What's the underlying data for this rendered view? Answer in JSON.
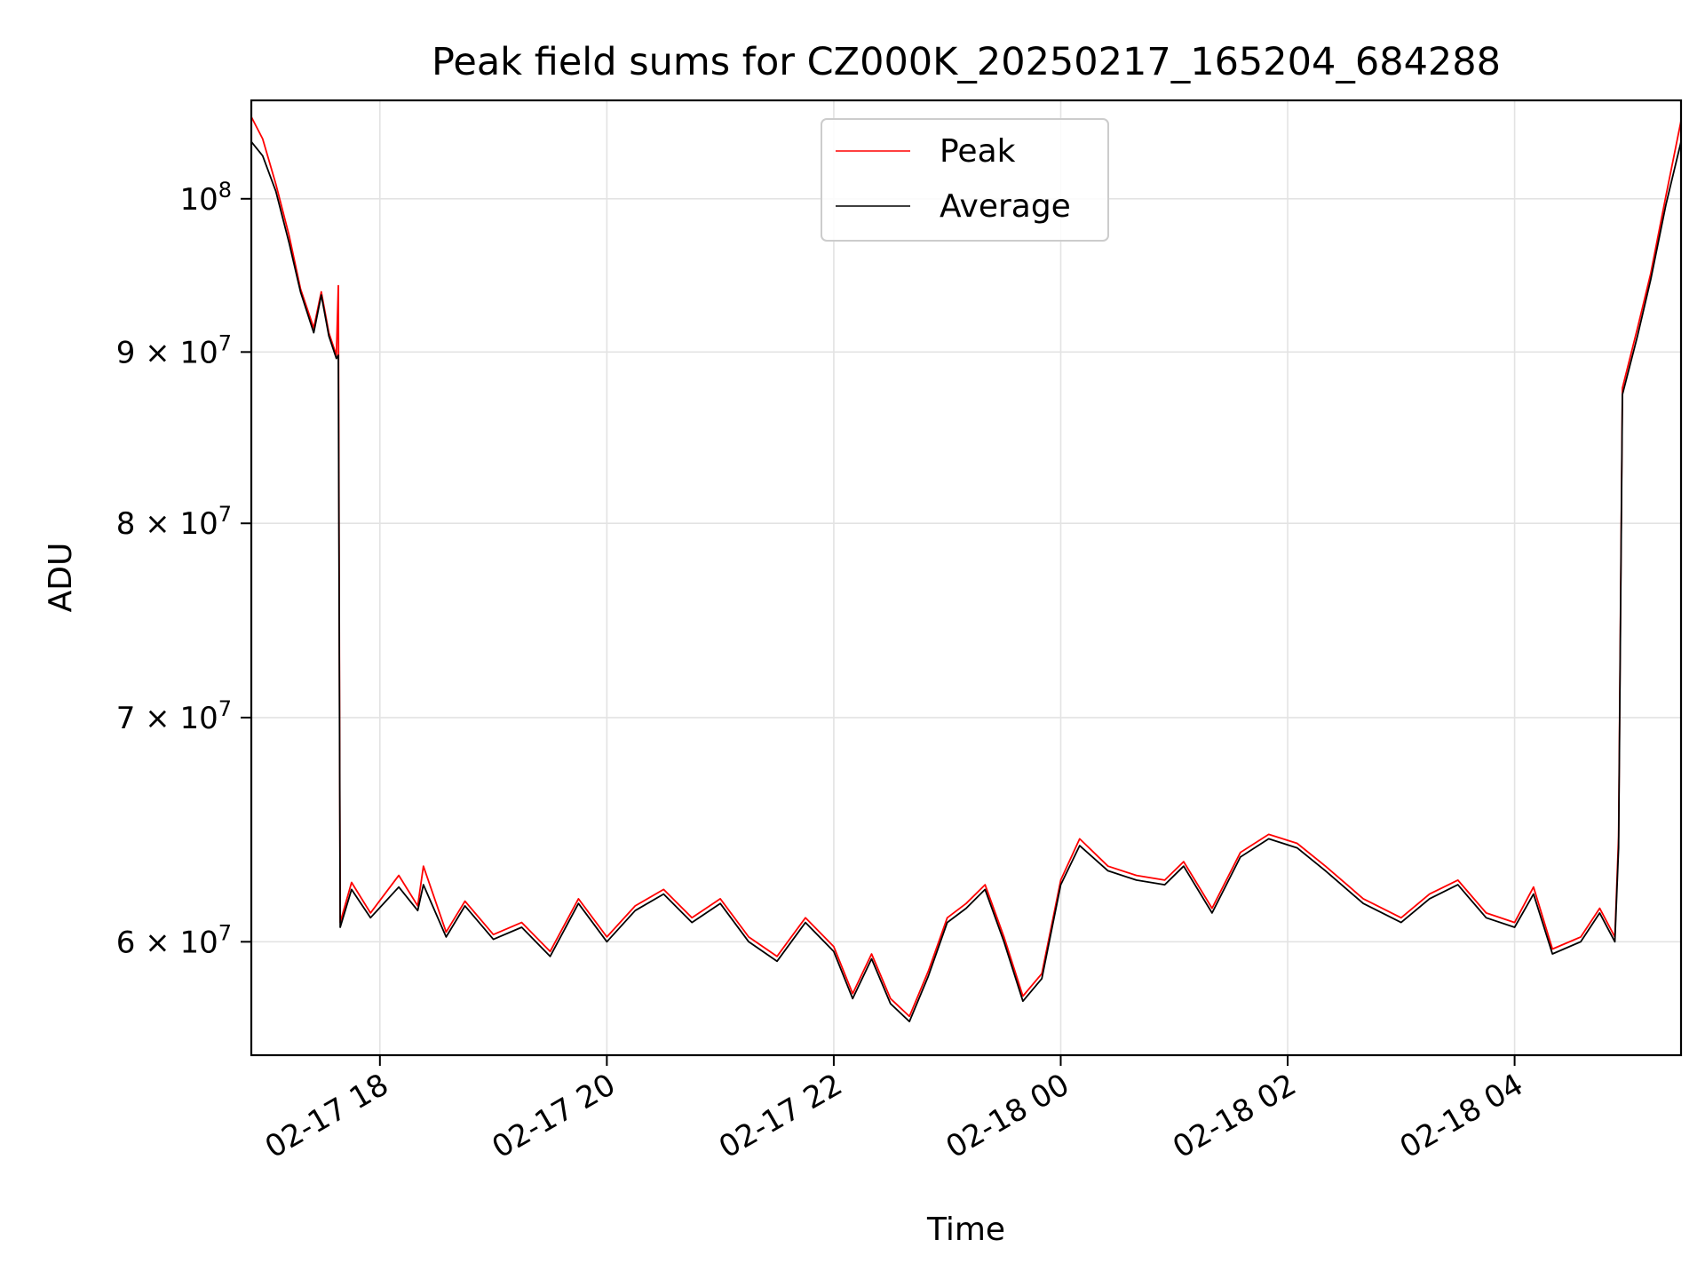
{
  "chart_data": {
    "type": "line",
    "title": "Peak field sums for CZ000K_20250217_165204_684288",
    "xlabel": "Time",
    "ylabel": "ADU",
    "x_range": [
      "2025-02-17T16:52",
      "2025-02-18T05:28"
    ],
    "y_scale": "log",
    "ylim": [
      55500000,
      107000000
    ],
    "grid": true,
    "legend_position": "top-center",
    "x_ticks": [
      {
        "value": "2025-02-17T18:00",
        "label": "02-17 18"
      },
      {
        "value": "2025-02-17T20:00",
        "label": "02-17 20"
      },
      {
        "value": "2025-02-17T22:00",
        "label": "02-17 22"
      },
      {
        "value": "2025-02-18T00:00",
        "label": "02-18 00"
      },
      {
        "value": "2025-02-18T02:00",
        "label": "02-18 02"
      },
      {
        "value": "2025-02-18T04:00",
        "label": "02-18 04"
      }
    ],
    "y_ticks": [
      {
        "value": 60000000,
        "mantissa": "6",
        "label": "6 × 10⁷"
      },
      {
        "value": 70000000,
        "mantissa": "7",
        "label": "7 × 10⁷"
      },
      {
        "value": 80000000,
        "mantissa": "8",
        "label": "8 × 10⁷"
      },
      {
        "value": 90000000,
        "mantissa": "9",
        "label": "9 × 10⁷"
      },
      {
        "value": 100000000,
        "mantissa": "",
        "label": "10⁸"
      }
    ],
    "y_tick_base": "10",
    "y_tick_exp_minor": "7",
    "y_tick_exp_major": "8",
    "series": [
      {
        "name": "Peak",
        "color": "#ff0000",
        "points": [
          [
            "2025-02-17T16:52",
            105800000
          ],
          [
            "2025-02-17T16:58",
            104200000
          ],
          [
            "2025-02-17T17:05",
            101000000
          ],
          [
            "2025-02-17T17:12",
            97500000
          ],
          [
            "2025-02-17T17:18",
            94000000
          ],
          [
            "2025-02-17T17:25",
            91500000
          ],
          [
            "2025-02-17T17:29",
            93800000
          ],
          [
            "2025-02-17T17:33",
            91200000
          ],
          [
            "2025-02-17T17:37",
            89800000
          ],
          [
            "2025-02-17T17:38",
            94200000
          ],
          [
            "2025-02-17T17:39",
            60800000
          ],
          [
            "2025-02-17T17:45",
            62500000
          ],
          [
            "2025-02-17T17:55",
            61200000
          ],
          [
            "2025-02-17T18:10",
            62800000
          ],
          [
            "2025-02-17T18:20",
            61500000
          ],
          [
            "2025-02-17T18:23",
            63200000
          ],
          [
            "2025-02-17T18:35",
            60400000
          ],
          [
            "2025-02-17T18:45",
            61700000
          ],
          [
            "2025-02-17T19:00",
            60300000
          ],
          [
            "2025-02-17T19:15",
            60800000
          ],
          [
            "2025-02-17T19:30",
            59600000
          ],
          [
            "2025-02-17T19:45",
            61800000
          ],
          [
            "2025-02-17T20:00",
            60200000
          ],
          [
            "2025-02-17T20:15",
            61500000
          ],
          [
            "2025-02-17T20:30",
            62200000
          ],
          [
            "2025-02-17T20:45",
            61000000
          ],
          [
            "2025-02-17T21:00",
            61800000
          ],
          [
            "2025-02-17T21:15",
            60200000
          ],
          [
            "2025-02-17T21:30",
            59400000
          ],
          [
            "2025-02-17T21:45",
            61000000
          ],
          [
            "2025-02-17T22:00",
            59800000
          ],
          [
            "2025-02-17T22:10",
            57900000
          ],
          [
            "2025-02-17T22:20",
            59500000
          ],
          [
            "2025-02-17T22:30",
            57700000
          ],
          [
            "2025-02-17T22:40",
            57000000
          ],
          [
            "2025-02-17T22:50",
            58800000
          ],
          [
            "2025-02-17T23:00",
            61000000
          ],
          [
            "2025-02-17T23:10",
            61600000
          ],
          [
            "2025-02-17T23:20",
            62400000
          ],
          [
            "2025-02-17T23:30",
            60200000
          ],
          [
            "2025-02-17T23:40",
            57800000
          ],
          [
            "2025-02-17T23:50",
            58700000
          ],
          [
            "2025-02-18T00:00",
            62600000
          ],
          [
            "2025-02-18T00:10",
            64400000
          ],
          [
            "2025-02-18T00:25",
            63200000
          ],
          [
            "2025-02-18T00:40",
            62800000
          ],
          [
            "2025-02-18T00:55",
            62600000
          ],
          [
            "2025-02-18T01:05",
            63400000
          ],
          [
            "2025-02-18T01:20",
            61400000
          ],
          [
            "2025-02-18T01:35",
            63800000
          ],
          [
            "2025-02-18T01:50",
            64600000
          ],
          [
            "2025-02-18T02:05",
            64200000
          ],
          [
            "2025-02-18T02:20",
            63200000
          ],
          [
            "2025-02-18T02:40",
            61800000
          ],
          [
            "2025-02-18T03:00",
            61000000
          ],
          [
            "2025-02-18T03:15",
            62000000
          ],
          [
            "2025-02-18T03:30",
            62600000
          ],
          [
            "2025-02-18T03:45",
            61200000
          ],
          [
            "2025-02-18T04:00",
            60800000
          ],
          [
            "2025-02-18T04:10",
            62300000
          ],
          [
            "2025-02-18T04:20",
            59700000
          ],
          [
            "2025-02-18T04:35",
            60200000
          ],
          [
            "2025-02-18T04:45",
            61400000
          ],
          [
            "2025-02-18T04:53",
            60200000
          ],
          [
            "2025-02-18T04:55",
            64500000
          ],
          [
            "2025-02-18T04:57",
            87800000
          ],
          [
            "2025-02-18T05:05",
            91500000
          ],
          [
            "2025-02-18T05:12",
            95000000
          ],
          [
            "2025-02-18T05:20",
            100200000
          ],
          [
            "2025-02-18T05:28",
            105500000
          ]
        ]
      },
      {
        "name": "Average",
        "color": "#000000",
        "points": [
          [
            "2025-02-17T16:52",
            104000000
          ],
          [
            "2025-02-17T16:58",
            103000000
          ],
          [
            "2025-02-17T17:05",
            100500000
          ],
          [
            "2025-02-17T17:12",
            97000000
          ],
          [
            "2025-02-17T17:18",
            93800000
          ],
          [
            "2025-02-17T17:25",
            91200000
          ],
          [
            "2025-02-17T17:29",
            93600000
          ],
          [
            "2025-02-17T17:33",
            91000000
          ],
          [
            "2025-02-17T17:37",
            89600000
          ],
          [
            "2025-02-17T17:38",
            89800000
          ],
          [
            "2025-02-17T17:39",
            60600000
          ],
          [
            "2025-02-17T17:45",
            62200000
          ],
          [
            "2025-02-17T17:55",
            61000000
          ],
          [
            "2025-02-17T18:10",
            62300000
          ],
          [
            "2025-02-17T18:20",
            61300000
          ],
          [
            "2025-02-17T18:23",
            62400000
          ],
          [
            "2025-02-17T18:35",
            60200000
          ],
          [
            "2025-02-17T18:45",
            61500000
          ],
          [
            "2025-02-17T19:00",
            60100000
          ],
          [
            "2025-02-17T19:15",
            60600000
          ],
          [
            "2025-02-17T19:30",
            59400000
          ],
          [
            "2025-02-17T19:45",
            61600000
          ],
          [
            "2025-02-17T20:00",
            60000000
          ],
          [
            "2025-02-17T20:15",
            61300000
          ],
          [
            "2025-02-17T20:30",
            62000000
          ],
          [
            "2025-02-17T20:45",
            60800000
          ],
          [
            "2025-02-17T21:00",
            61600000
          ],
          [
            "2025-02-17T21:15",
            60000000
          ],
          [
            "2025-02-17T21:30",
            59200000
          ],
          [
            "2025-02-17T21:45",
            60800000
          ],
          [
            "2025-02-17T22:00",
            59600000
          ],
          [
            "2025-02-17T22:10",
            57700000
          ],
          [
            "2025-02-17T22:20",
            59300000
          ],
          [
            "2025-02-17T22:30",
            57500000
          ],
          [
            "2025-02-17T22:40",
            56800000
          ],
          [
            "2025-02-17T22:50",
            58600000
          ],
          [
            "2025-02-17T23:00",
            60800000
          ],
          [
            "2025-02-17T23:10",
            61400000
          ],
          [
            "2025-02-17T23:20",
            62200000
          ],
          [
            "2025-02-17T23:30",
            60000000
          ],
          [
            "2025-02-17T23:40",
            57600000
          ],
          [
            "2025-02-17T23:50",
            58500000
          ],
          [
            "2025-02-18T00:00",
            62400000
          ],
          [
            "2025-02-18T00:10",
            64100000
          ],
          [
            "2025-02-18T00:25",
            63000000
          ],
          [
            "2025-02-18T00:40",
            62600000
          ],
          [
            "2025-02-18T00:55",
            62400000
          ],
          [
            "2025-02-18T01:05",
            63200000
          ],
          [
            "2025-02-18T01:20",
            61200000
          ],
          [
            "2025-02-18T01:35",
            63600000
          ],
          [
            "2025-02-18T01:50",
            64400000
          ],
          [
            "2025-02-18T02:05",
            64000000
          ],
          [
            "2025-02-18T02:20",
            63000000
          ],
          [
            "2025-02-18T02:40",
            61600000
          ],
          [
            "2025-02-18T03:00",
            60800000
          ],
          [
            "2025-02-18T03:15",
            61800000
          ],
          [
            "2025-02-18T03:30",
            62400000
          ],
          [
            "2025-02-18T03:45",
            61000000
          ],
          [
            "2025-02-18T04:00",
            60600000
          ],
          [
            "2025-02-18T04:10",
            62000000
          ],
          [
            "2025-02-18T04:20",
            59500000
          ],
          [
            "2025-02-18T04:35",
            60000000
          ],
          [
            "2025-02-18T04:45",
            61200000
          ],
          [
            "2025-02-18T04:53",
            60000000
          ],
          [
            "2025-02-18T04:55",
            64000000
          ],
          [
            "2025-02-18T04:57",
            87400000
          ],
          [
            "2025-02-18T05:05",
            91000000
          ],
          [
            "2025-02-18T05:12",
            94600000
          ],
          [
            "2025-02-18T05:20",
            99600000
          ],
          [
            "2025-02-18T05:28",
            104000000
          ]
        ]
      }
    ]
  }
}
